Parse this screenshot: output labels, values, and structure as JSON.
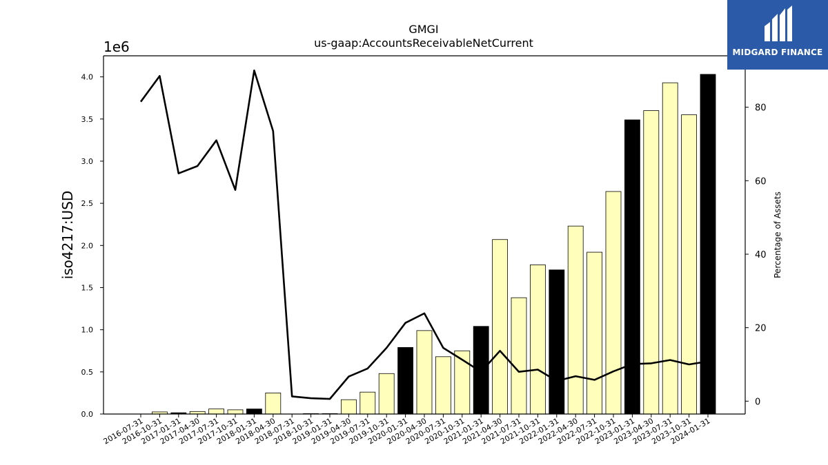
{
  "chart_data": {
    "type": "bar",
    "title": "GMGI",
    "subtitle": "us-gaap:AccountsReceivableNetCurrent",
    "ylabel": "iso4217:USD",
    "y2label": "Percentage of Assets",
    "y_multiplier": "1e6",
    "ylim": [
      0,
      4.25
    ],
    "y_ticks": [
      "0.0",
      "0.5",
      "1.0",
      "1.5",
      "2.0",
      "2.5",
      "3.0",
      "3.5",
      "4.0"
    ],
    "y2lim": [
      -3.5,
      94
    ],
    "y2_ticks": [
      "0",
      "20",
      "40",
      "60",
      "80"
    ],
    "categories": [
      "2016-07-31",
      "2016-10-31",
      "2017-01-31",
      "2017-04-30",
      "2017-07-31",
      "2017-10-31",
      "2018-01-31",
      "2018-04-30",
      "2018-07-31",
      "2018-10-31",
      "2019-01-31",
      "2019-04-30",
      "2019-07-31",
      "2019-10-31",
      "2020-01-31",
      "2020-04-30",
      "2020-07-31",
      "2020-10-31",
      "2021-01-31",
      "2021-04-30",
      "2021-07-31",
      "2021-10-31",
      "2022-01-31",
      "2022-04-30",
      "2022-07-31",
      "2022-10-31",
      "2023-01-31",
      "2023-04-30",
      "2023-07-31",
      "2023-10-31",
      "2024-01-31"
    ],
    "series": [
      {
        "type": "bar",
        "values": [
          0.0,
          0.025,
          0.015,
          0.03,
          0.06,
          0.05,
          0.06,
          0.25,
          0.0,
          0.005,
          0.005,
          0.17,
          0.26,
          0.48,
          0.79,
          0.99,
          0.68,
          0.75,
          1.04,
          2.07,
          1.38,
          1.77,
          1.71,
          2.23,
          1.92,
          2.64,
          3.49,
          3.6,
          3.93,
          3.55,
          4.03
        ],
        "fiscal_year_end": [
          false,
          false,
          true,
          false,
          false,
          false,
          true,
          false,
          false,
          false,
          false,
          false,
          false,
          false,
          true,
          false,
          false,
          false,
          true,
          false,
          false,
          false,
          true,
          false,
          false,
          false,
          true,
          false,
          false,
          false,
          true
        ]
      },
      {
        "type": "line",
        "axis": "right",
        "values": [
          81.5,
          88.5,
          62,
          64,
          71,
          57.5,
          90,
          73.5,
          1.3,
          0.8,
          0.6,
          6.7,
          8.9,
          14.5,
          21.3,
          23.9,
          14.5,
          11.3,
          8,
          13.7,
          8,
          8.6,
          5.5,
          6.8,
          5.8,
          8.1,
          10.1,
          10.3,
          11.2,
          10,
          10.8
        ]
      }
    ],
    "colors": {
      "bar_default": "#ffffbb",
      "bar_highlight": "#000000",
      "line": "#000000"
    }
  },
  "logo": {
    "text": "MIDGARD FINANCE"
  }
}
